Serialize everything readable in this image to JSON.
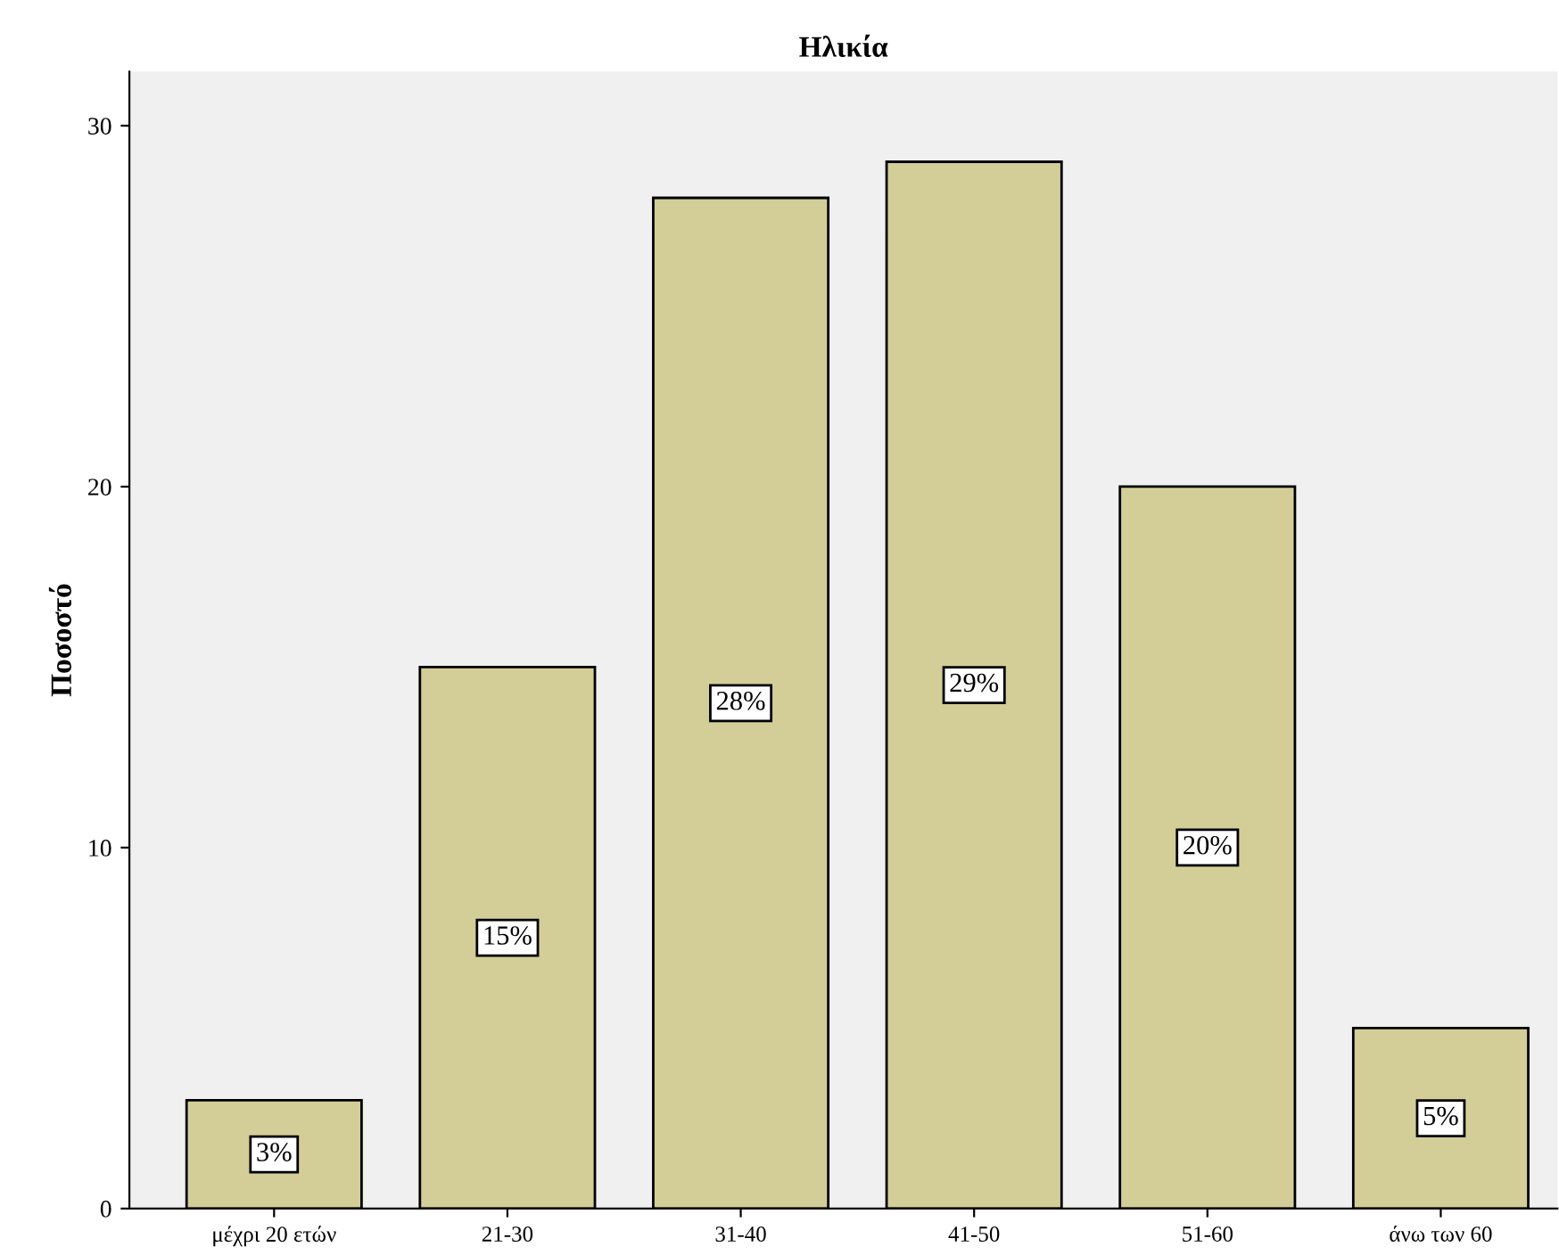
{
  "chart_data": {
    "type": "bar",
    "title": "Ηλικία",
    "ylabel": "Ποσοστό",
    "categories": [
      "μέχρι 20 ετών",
      "21-30",
      "31-40",
      "41-50",
      "51-60",
      "άνω των 60"
    ],
    "values": [
      3,
      15,
      28,
      29,
      20,
      5
    ],
    "value_labels": [
      "3%",
      "15%",
      "28%",
      "29%",
      "20%",
      "5%"
    ],
    "color": "#d3ce97",
    "ylim": [
      0,
      31.5
    ],
    "yticks": [
      0,
      10,
      20,
      30
    ],
    "grid": false
  }
}
